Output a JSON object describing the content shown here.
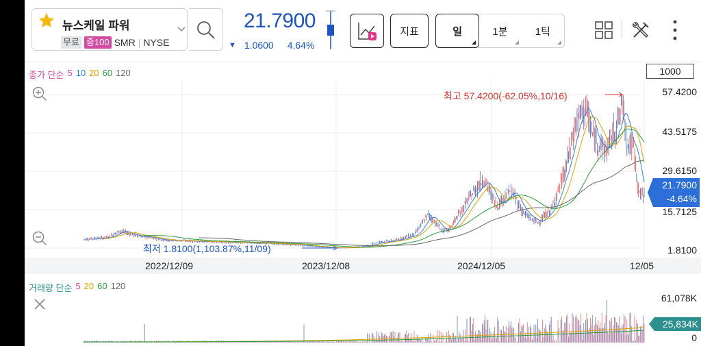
{
  "header": {
    "stock_name": "뉴스케일 파워",
    "badge_free": "무료",
    "badge_margin": "증100",
    "ticker": "SMR",
    "exchange": "NYSE",
    "price": "21.7900",
    "change_amount": "1.0600",
    "change_percent": "4.64%",
    "change_direction": "down",
    "indicator_button": "지표",
    "timeframes": [
      {
        "label": "일",
        "selected": true
      },
      {
        "label": "1분",
        "selected": false
      },
      {
        "label": "1틱",
        "selected": false
      }
    ]
  },
  "chart": {
    "ma_legend": {
      "prefix": "종가 단순",
      "periods": [
        "5",
        "10",
        "20",
        "60",
        "120"
      ],
      "colors": [
        "#d54ba2",
        "#2f7fe0",
        "#e0a200",
        "#2a9d3a",
        "#666666"
      ]
    },
    "candle_count": "1000",
    "y_labels": [
      "57.4200",
      "43.5175",
      "29.6150",
      "15.7125",
      "1.8100"
    ],
    "current_price_tag": "21.7900",
    "current_change_tag": "-4.64%",
    "high_annotation": "최고 57.4200(-62.05%,10/16)",
    "low_annotation": "최저 1.8100(1,103.87%,11/09)",
    "x_labels": [
      "2022/12/09",
      "2023/12/08",
      "2024/12/05",
      "12/05"
    ],
    "colors": {
      "up": "#e53935",
      "down": "#1b54c2",
      "accent": "#2c6fd8"
    }
  },
  "volume": {
    "legend": {
      "prefix": "거래량 단순",
      "periods": [
        "5",
        "20",
        "60",
        "120"
      ],
      "colors": [
        "#d54ba2",
        "#e0a200",
        "#2a9d3a",
        "#666666"
      ]
    },
    "y_max": "61,078K",
    "y_min": "0",
    "current_tag": "25,834K"
  }
}
